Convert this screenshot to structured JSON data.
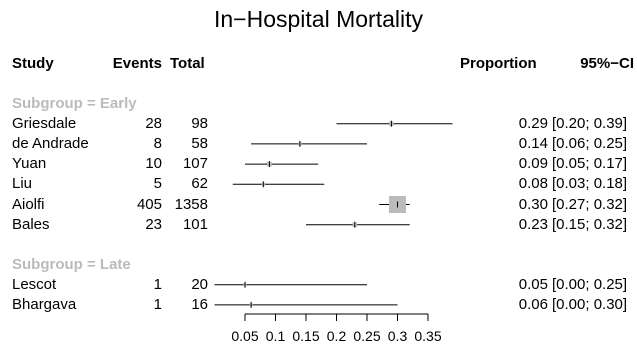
{
  "chart_data": {
    "type": "forest",
    "title": "In−Hospital Mortality",
    "columns": {
      "study": "Study",
      "events": "Events",
      "total": "Total",
      "proportion": "Proportion",
      "ci": "95%−CI"
    },
    "subgroups": [
      {
        "label": "Subgroup = Early",
        "studies": [
          {
            "study": "Griesdale",
            "events": "28",
            "total": "98",
            "proportion": 0.29,
            "ci_low": 0.2,
            "ci_high": 0.39,
            "prop_text": "0.29",
            "ci_text": "[0.20; 0.39]"
          },
          {
            "study": "de Andrade",
            "events": "8",
            "total": "58",
            "proportion": 0.14,
            "ci_low": 0.06,
            "ci_high": 0.25,
            "prop_text": "0.14",
            "ci_text": "[0.06; 0.25]"
          },
          {
            "study": "Yuan",
            "events": "10",
            "total": "107",
            "proportion": 0.09,
            "ci_low": 0.05,
            "ci_high": 0.17,
            "prop_text": "0.09",
            "ci_text": "[0.05; 0.17]"
          },
          {
            "study": "Liu",
            "events": "5",
            "total": "62",
            "proportion": 0.08,
            "ci_low": 0.03,
            "ci_high": 0.18,
            "prop_text": "0.08",
            "ci_text": "[0.03; 0.18]"
          },
          {
            "study": "Aiolfi",
            "events": "405",
            "total": "1358",
            "proportion": 0.3,
            "ci_low": 0.27,
            "ci_high": 0.32,
            "prop_text": "0.30",
            "ci_text": "[0.27; 0.32]"
          },
          {
            "study": "Bales",
            "events": "23",
            "total": "101",
            "proportion": 0.23,
            "ci_low": 0.15,
            "ci_high": 0.32,
            "prop_text": "0.23",
            "ci_text": "[0.15; 0.32]"
          }
        ]
      },
      {
        "label": "Subgroup = Late",
        "studies": [
          {
            "study": "Lescot",
            "events": "1",
            "total": "20",
            "proportion": 0.05,
            "ci_low": 0.0,
            "ci_high": 0.25,
            "prop_text": "0.05",
            "ci_text": "[0.00; 0.25]"
          },
          {
            "study": "Bhargava",
            "events": "1",
            "total": "16",
            "proportion": 0.06,
            "ci_low": 0.0,
            "ci_high": 0.3,
            "prop_text": "0.06",
            "ci_text": "[0.00; 0.30]"
          }
        ]
      }
    ],
    "x_axis": {
      "ticks": [
        0.05,
        0.1,
        0.15,
        0.2,
        0.25,
        0.3,
        0.35
      ],
      "tick_labels": [
        "0.05",
        "0.1",
        "0.15",
        "0.2",
        "0.25",
        "0.3",
        "0.35"
      ]
    },
    "square_color": "#bbbbbb",
    "line_color": "#000000"
  }
}
